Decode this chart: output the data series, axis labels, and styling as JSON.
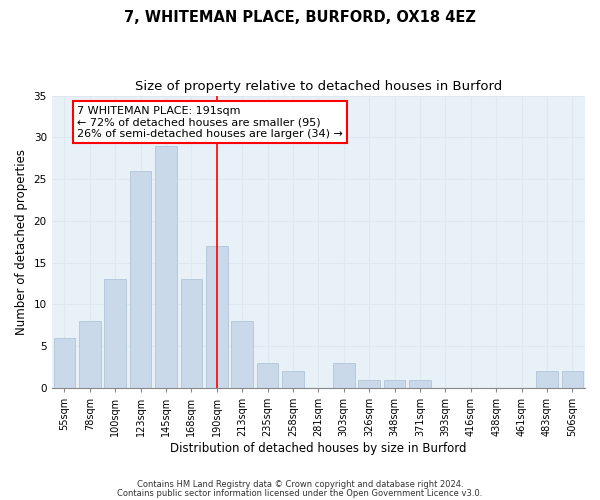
{
  "title_main": "7, WHITEMAN PLACE, BURFORD, OX18 4EZ",
  "title_sub": "Size of property relative to detached houses in Burford",
  "xlabel": "Distribution of detached houses by size in Burford",
  "ylabel": "Number of detached properties",
  "categories": [
    "55sqm",
    "78sqm",
    "100sqm",
    "123sqm",
    "145sqm",
    "168sqm",
    "190sqm",
    "213sqm",
    "235sqm",
    "258sqm",
    "281sqm",
    "303sqm",
    "326sqm",
    "348sqm",
    "371sqm",
    "393sqm",
    "416sqm",
    "438sqm",
    "461sqm",
    "483sqm",
    "506sqm"
  ],
  "values": [
    6,
    8,
    13,
    26,
    29,
    13,
    17,
    8,
    3,
    2,
    0,
    3,
    1,
    1,
    1,
    0,
    0,
    0,
    0,
    2,
    2
  ],
  "bar_color": "#c9d9ea",
  "bar_edge_color": "#a8c0d4",
  "bar_width": 0.85,
  "ylim": [
    0,
    35
  ],
  "yticks": [
    0,
    5,
    10,
    15,
    20,
    25,
    30,
    35
  ],
  "red_line_x": 6.0,
  "annotation_line1": "7 WHITEMAN PLACE: 191sqm",
  "annotation_line2": "← 72% of detached houses are smaller (95)",
  "annotation_line3": "26% of semi-detached houses are larger (34) →",
  "grid_color": "#dde8f0",
  "background_color": "#e8f0f8",
  "footer_line1": "Contains HM Land Registry data © Crown copyright and database right 2024.",
  "footer_line2": "Contains public sector information licensed under the Open Government Licence v3.0.",
  "title_fontsize": 10.5,
  "subtitle_fontsize": 9.5,
  "tick_fontsize": 7,
  "ylabel_fontsize": 8.5,
  "xlabel_fontsize": 8.5,
  "annotation_fontsize": 8,
  "footer_fontsize": 6
}
